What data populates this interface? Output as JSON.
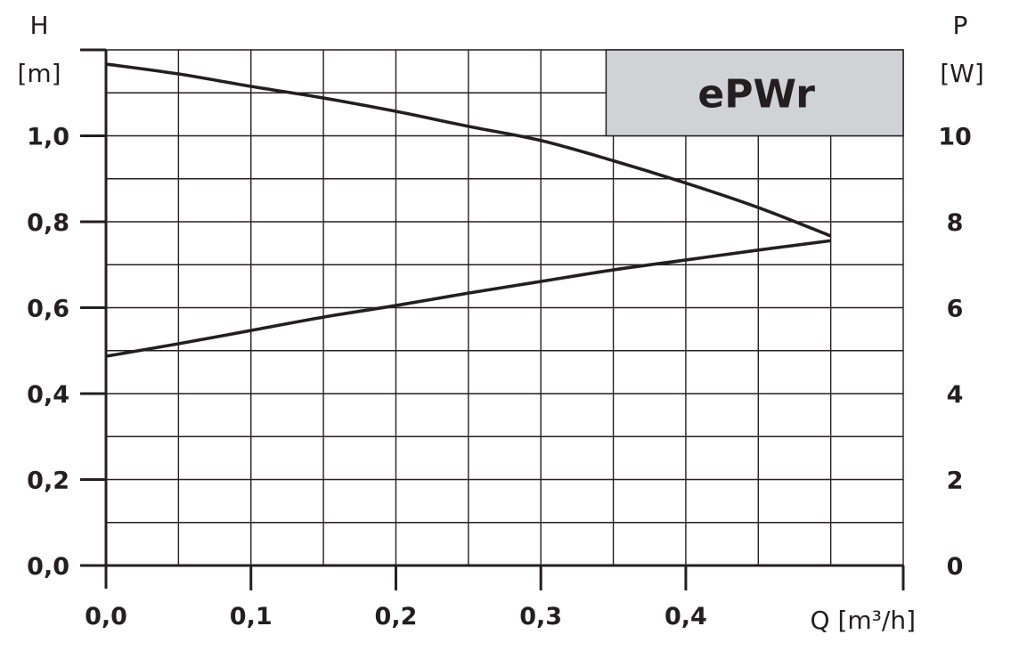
{
  "chart_data": {
    "type": "line",
    "title": "ePWr",
    "xlabel": "Q [m³/h]",
    "ylabel_left_symbol": "H",
    "ylabel_left_unit": "[m]",
    "ylabel_right_symbol": "P",
    "ylabel_right_unit": "[W]",
    "xlim": [
      0,
      0.55
    ],
    "ylim_left": [
      0,
      1.2
    ],
    "ylim_right": [
      0,
      12
    ],
    "grid": true,
    "x_ticks": [
      "0,0",
      "0,1",
      "0,2",
      "0,3",
      "0,4"
    ],
    "y_left_ticks": [
      "0,0",
      "0,2",
      "0,4",
      "0,6",
      "0,8",
      "1,0"
    ],
    "y_right_ticks": [
      "0",
      "2",
      "4",
      "6",
      "8",
      "10"
    ],
    "title_box_color": "#d1d2d4",
    "line_color": "#231f20",
    "series": [
      {
        "axis": "left",
        "x": [
          0,
          0.05,
          0.1,
          0.15,
          0.2,
          0.25,
          0.3,
          0.35,
          0.4,
          0.45,
          0.5
        ],
        "y": [
          1.167,
          1.144,
          1.115,
          1.088,
          1.057,
          1.022,
          0.989,
          0.942,
          0.89,
          0.833,
          0.767
        ]
      },
      {
        "axis": "right",
        "x": [
          0,
          0.05,
          0.1,
          0.15,
          0.2,
          0.25,
          0.3,
          0.35,
          0.4,
          0.45,
          0.5
        ],
        "y": [
          4.87,
          5.16,
          5.47,
          5.78,
          6.05,
          6.34,
          6.61,
          6.88,
          7.11,
          7.34,
          7.56
        ]
      }
    ]
  }
}
